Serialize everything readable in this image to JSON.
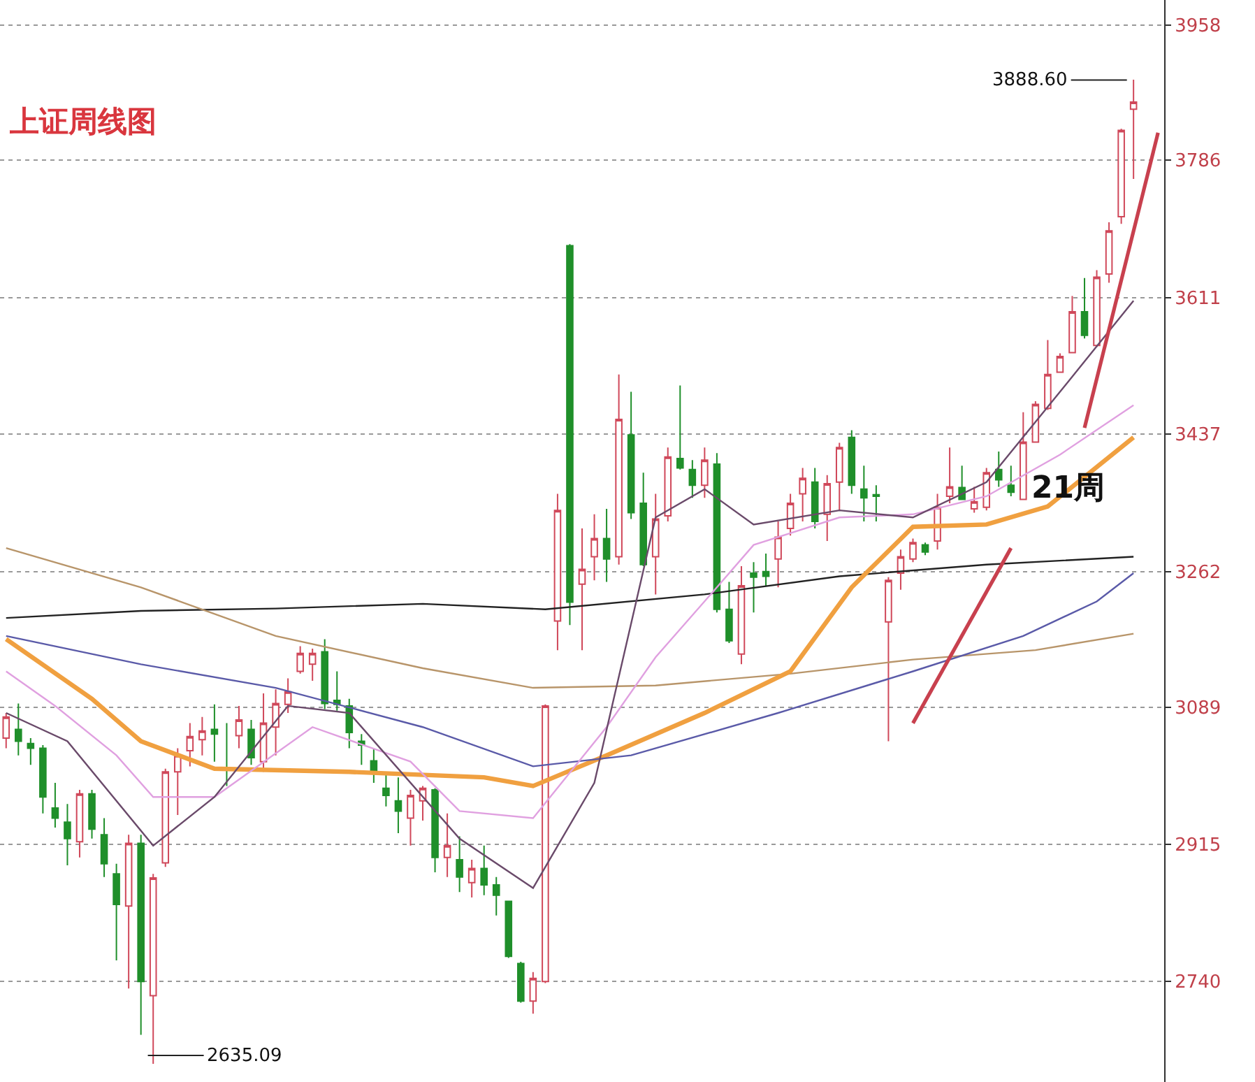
{
  "chart_data": {
    "type": "candlestick",
    "title": "上证周线图",
    "categories": [
      null,
      null,
      null,
      null,
      null,
      null,
      null,
      null,
      null,
      null,
      null,
      null,
      null,
      null,
      null,
      null,
      null,
      null,
      null,
      null,
      null,
      null,
      null,
      null,
      null,
      null,
      null,
      null,
      null,
      null,
      null,
      null,
      null,
      null,
      null,
      null,
      null,
      null,
      null,
      null,
      null,
      null,
      null,
      null,
      null,
      null,
      null,
      null,
      null,
      null,
      null,
      null,
      null,
      null,
      null,
      null,
      null,
      null,
      null,
      null,
      null,
      null,
      null,
      null,
      null,
      null,
      null,
      null,
      null,
      null,
      null,
      null,
      null,
      null,
      null,
      null,
      null,
      null,
      null,
      null,
      null,
      null,
      null,
      null,
      null,
      null,
      null,
      null,
      null,
      null,
      null,
      null,
      null,
      null,
      null
    ],
    "ohlc": [
      [
        3050,
        3082,
        3037,
        3077
      ],
      [
        3061,
        3094,
        3028,
        3046
      ],
      [
        3043,
        3050,
        3016,
        3037
      ],
      [
        3037,
        3041,
        2954,
        2975
      ],
      [
        2961,
        2993,
        2936,
        2948
      ],
      [
        2943,
        2966,
        2888,
        2922
      ],
      [
        2918,
        2984,
        2898,
        2979
      ],
      [
        2979,
        2984,
        2922,
        2934
      ],
      [
        2927,
        2948,
        2873,
        2890
      ],
      [
        2877,
        2890,
        2767,
        2838
      ],
      [
        2836,
        2927,
        2731,
        2916
      ],
      [
        2916,
        2927,
        2672,
        2740
      ],
      [
        2722,
        2877,
        2635.09,
        2872
      ],
      [
        2891,
        3011,
        2886,
        3007
      ],
      [
        3007,
        3037,
        2952,
        3028
      ],
      [
        3034,
        3069,
        3014,
        3052
      ],
      [
        3048,
        3077,
        3028,
        3059
      ],
      [
        3061,
        3093,
        3020,
        3055
      ],
      [
        3012,
        3069,
        2989,
        3009
      ],
      [
        3053,
        3091,
        3037,
        3073
      ],
      [
        3061,
        3073,
        3016,
        3025
      ],
      [
        3020,
        3107,
        3007,
        3069
      ],
      [
        3064,
        3112,
        3028,
        3094
      ],
      [
        3093,
        3126,
        3082,
        3109
      ],
      [
        3135,
        3167,
        3132,
        3158
      ],
      [
        3144,
        3164,
        3123,
        3158
      ],
      [
        3160,
        3176,
        3087,
        3094
      ],
      [
        3098,
        3135,
        3085,
        3093
      ],
      [
        3091,
        3100,
        3037,
        3057
      ],
      [
        3046,
        3055,
        3016,
        3041
      ],
      [
        3021,
        3036,
        2993,
        3007
      ],
      [
        2986,
        3005,
        2963,
        2977
      ],
      [
        2970,
        3000,
        2929,
        2957
      ],
      [
        2948,
        2984,
        2913,
        2977
      ],
      [
        2970,
        2989,
        2945,
        2986
      ],
      [
        2984,
        2986,
        2879,
        2898
      ],
      [
        2898,
        2954,
        2873,
        2913
      ],
      [
        2895,
        2925,
        2854,
        2873
      ],
      [
        2866,
        2895,
        2847,
        2884
      ],
      [
        2884,
        2913,
        2850,
        2863
      ],
      [
        2863,
        2873,
        2824,
        2850
      ],
      [
        2842,
        2843,
        2770,
        2772
      ],
      [
        2763,
        2765,
        2713,
        2715
      ],
      [
        2715,
        2752,
        2699,
        2744
      ],
      [
        2740,
        3093,
        2738,
        3091
      ],
      [
        3199,
        3361,
        3162,
        3340
      ],
      [
        3677,
        3679,
        3194,
        3223
      ],
      [
        3246,
        3317,
        3162,
        3265
      ],
      [
        3281,
        3335,
        3251,
        3304
      ],
      [
        3304,
        3342,
        3249,
        3278
      ],
      [
        3281,
        3513,
        3271,
        3456
      ],
      [
        3436,
        3491,
        3329,
        3337
      ],
      [
        3349,
        3388,
        3269,
        3271
      ],
      [
        3281,
        3361,
        3233,
        3329
      ],
      [
        3333,
        3420,
        3326,
        3408
      ],
      [
        3406,
        3499,
        3392,
        3394
      ],
      [
        3392,
        3404,
        3356,
        3372
      ],
      [
        3372,
        3420,
        3356,
        3404
      ],
      [
        3399,
        3413,
        3210,
        3214
      ],
      [
        3214,
        3249,
        3171,
        3174
      ],
      [
        3157,
        3269,
        3144,
        3244
      ],
      [
        3260,
        3274,
        3210,
        3255
      ],
      [
        3262,
        3285,
        3244,
        3256
      ],
      [
        3278,
        3326,
        3242,
        3306
      ],
      [
        3317,
        3361,
        3308,
        3349
      ],
      [
        3361,
        3394,
        3326,
        3381
      ],
      [
        3376,
        3394,
        3317,
        3326
      ],
      [
        3335,
        3385,
        3301,
        3374
      ],
      [
        3376,
        3426,
        3340,
        3420
      ],
      [
        3433,
        3442,
        3361,
        3372
      ],
      [
        3367,
        3397,
        3326,
        3356
      ],
      [
        3360,
        3372,
        3326,
        3358
      ],
      [
        3198,
        3255,
        3046,
        3251
      ],
      [
        3260,
        3290,
        3239,
        3281
      ],
      [
        3278,
        3304,
        3274,
        3299
      ],
      [
        3296,
        3299,
        3283,
        3287
      ],
      [
        3301,
        3361,
        3290,
        3344
      ],
      [
        3358,
        3420,
        3349,
        3370
      ],
      [
        3369,
        3397,
        3353,
        3354
      ],
      [
        3342,
        3370,
        3337,
        3351
      ],
      [
        3344,
        3394,
        3340,
        3388
      ],
      [
        3392,
        3415,
        3370,
        3379
      ],
      [
        3372,
        3397,
        3358,
        3363
      ],
      [
        3354,
        3465,
        3353,
        3427
      ],
      [
        3427,
        3479,
        3426,
        3475
      ],
      [
        3470,
        3557,
        3468,
        3513
      ],
      [
        3516,
        3540,
        3515,
        3536
      ],
      [
        3541,
        3613,
        3540,
        3593
      ],
      [
        3593,
        3636,
        3559,
        3563
      ],
      [
        3550,
        3646,
        3548,
        3637
      ],
      [
        3641,
        3707,
        3630,
        3696
      ],
      [
        3714,
        3826,
        3705,
        3824
      ],
      [
        3851,
        3888.6,
        3762,
        3860
      ],
      null,
      null
    ],
    "series": [
      {
        "type": "line",
        "color": "#222222",
        "values": [
          3203,
          null,
          null,
          null,
          null,
          null,
          null,
          null,
          null,
          null,
          null,
          3212,
          null,
          null,
          null,
          null,
          null,
          null,
          null,
          null,
          null,
          null,
          3215,
          null,
          null,
          null,
          null,
          null,
          null,
          null,
          null,
          null,
          null,
          null,
          3221,
          null,
          null,
          null,
          null,
          null,
          null,
          null,
          null,
          null,
          3214,
          null,
          null,
          null,
          null,
          null,
          null,
          null,
          null,
          null,
          null,
          null,
          null,
          3233,
          null,
          null,
          null,
          null,
          null,
          null,
          null,
          null,
          null,
          null,
          3256,
          null,
          null,
          null,
          null,
          null,
          null,
          null,
          null,
          null,
          null,
          null,
          3271,
          null,
          null,
          null,
          null,
          null,
          null,
          null,
          null,
          null,
          null,
          null,
          3281,
          null,
          null
        ]
      },
      {
        "type": "line",
        "color": "#b8956a",
        "values": [
          3292,
          null,
          null,
          null,
          null,
          null,
          null,
          null,
          null,
          null,
          null,
          3242,
          null,
          null,
          null,
          null,
          null,
          null,
          null,
          null,
          null,
          null,
          3180,
          null,
          null,
          null,
          null,
          null,
          null,
          null,
          null,
          null,
          null,
          null,
          3139,
          null,
          null,
          null,
          null,
          null,
          null,
          null,
          null,
          3114,
          null,
          null,
          null,
          null,
          null,
          null,
          null,
          null,
          null,
          3117,
          null,
          null,
          null,
          null,
          null,
          null,
          null,
          null,
          null,
          null,
          3132,
          null,
          null,
          null,
          null,
          null,
          null,
          null,
          null,
          null,
          3150,
          null,
          null,
          null,
          null,
          null,
          null,
          null,
          null,
          null,
          3162,
          null,
          null,
          null,
          null,
          null,
          null,
          null,
          3183,
          null,
          null
        ]
      },
      {
        "type": "line",
        "color": "#f0a040",
        "values": [
          3176,
          null,
          null,
          null,
          null,
          null,
          null,
          3100,
          null,
          null,
          null,
          3046,
          null,
          null,
          null,
          null,
          null,
          3011,
          null,
          null,
          null,
          null,
          null,
          null,
          null,
          null,
          null,
          null,
          3007,
          null,
          null,
          null,
          null,
          null,
          null,
          null,
          null,
          null,
          null,
          3000,
          null,
          null,
          null,
          2989,
          null,
          null,
          null,
          null,
          null,
          3028,
          null,
          null,
          null,
          null,
          null,
          null,
          null,
          3082,
          null,
          null,
          null,
          null,
          null,
          null,
          3135,
          null,
          null,
          null,
          null,
          3242,
          null,
          null,
          null,
          null,
          3319,
          null,
          null,
          null,
          null,
          null,
          3322,
          null,
          null,
          null,
          null,
          3345,
          null,
          null,
          null,
          null,
          null,
          null,
          3433,
          null,
          null
        ]
      },
      {
        "type": "line",
        "color": "#5a5aa8",
        "values": [
          3180,
          null,
          null,
          null,
          null,
          null,
          null,
          null,
          null,
          null,
          null,
          3144,
          null,
          null,
          null,
          null,
          null,
          null,
          null,
          null,
          null,
          null,
          3114,
          null,
          null,
          null,
          null,
          null,
          null,
          null,
          null,
          null,
          null,
          null,
          3064,
          null,
          null,
          null,
          null,
          null,
          null,
          null,
          null,
          3014,
          null,
          null,
          null,
          null,
          null,
          null,
          null,
          3028,
          null,
          null,
          null,
          null,
          null,
          null,
          null,
          null,
          null,
          null,
          null,
          3082,
          null,
          null,
          null,
          null,
          null,
          null,
          null,
          null,
          null,
          null,
          3135,
          null,
          null,
          null,
          null,
          null,
          null,
          null,
          null,
          3180,
          null,
          null,
          null,
          null,
          null,
          3224,
          null,
          null,
          3260,
          null,
          null
        ]
      },
      {
        "type": "line",
        "color": "#e0a0e0",
        "values": [
          3135,
          null,
          null,
          null,
          3091,
          null,
          null,
          null,
          null,
          3028,
          null,
          null,
          2975,
          null,
          null,
          null,
          null,
          2975,
          null,
          null,
          null,
          null,
          null,
          null,
          null,
          3064,
          null,
          null,
          null,
          null,
          null,
          null,
          null,
          3020,
          null,
          null,
          null,
          2957,
          null,
          null,
          null,
          null,
          null,
          2948,
          null,
          null,
          null,
          null,
          null,
          3064,
          null,
          null,
          null,
          3153,
          null,
          null,
          null,
          null,
          3242,
          null,
          null,
          3296,
          null,
          null,
          null,
          null,
          null,
          null,
          3331,
          null,
          null,
          null,
          null,
          null,
          3335,
          null,
          null,
          null,
          null,
          null,
          3358,
          null,
          null,
          null,
          null,
          null,
          3411,
          null,
          null,
          null,
          null,
          null,
          3474,
          null,
          null
        ]
      },
      {
        "type": "line",
        "color": "#6a4a6a",
        "values": [
          3082,
          null,
          null,
          null,
          null,
          3046,
          null,
          null,
          null,
          null,
          null,
          null,
          2913,
          null,
          null,
          null,
          null,
          2975,
          null,
          null,
          null,
          null,
          null,
          3091,
          null,
          null,
          null,
          null,
          3082,
          null,
          null,
          null,
          null,
          null,
          null,
          null,
          null,
          2922,
          null,
          null,
          null,
          null,
          null,
          2859,
          null,
          null,
          null,
          null,
          2993,
          null,
          null,
          null,
          null,
          3331,
          null,
          null,
          null,
          3367,
          null,
          null,
          null,
          3322,
          null,
          null,
          null,
          null,
          null,
          null,
          3340,
          null,
          null,
          null,
          null,
          null,
          3331,
          null,
          null,
          null,
          null,
          null,
          3376,
          null,
          null,
          null,
          null,
          null,
          3491,
          null,
          null,
          null,
          null,
          null,
          3607,
          null,
          null
        ]
      },
      {
        "type": "line",
        "color": "#c8404e",
        "values": [
          null,
          null,
          null,
          null,
          null,
          null,
          null,
          null,
          null,
          null,
          null,
          null,
          null,
          null,
          null,
          null,
          null,
          null,
          null,
          null,
          null,
          null,
          null,
          null,
          null,
          null,
          null,
          null,
          null,
          null,
          null,
          null,
          null,
          null,
          null,
          null,
          null,
          null,
          null,
          null,
          null,
          null,
          null,
          null,
          null,
          null,
          null,
          null,
          null,
          null,
          null,
          null,
          null,
          null,
          null,
          null,
          null,
          null,
          null,
          null,
          null,
          null,
          null,
          null,
          null,
          null,
          null,
          null,
          null,
          null,
          null,
          null,
          null,
          null,
          3069,
          null,
          null,
          null,
          null,
          null,
          null,
          null,
          3292,
          null,
          null,
          null,
          null,
          null,
          null,
          null,
          null,
          null,
          null,
          null,
          null
        ]
      },
      {
        "type": "line",
        "color": "#c8404e",
        "values": [
          null,
          null,
          null,
          null,
          null,
          null,
          null,
          null,
          null,
          null,
          null,
          null,
          null,
          null,
          null,
          null,
          null,
          null,
          null,
          null,
          null,
          null,
          null,
          null,
          null,
          null,
          null,
          null,
          null,
          null,
          null,
          null,
          null,
          null,
          null,
          null,
          null,
          null,
          null,
          null,
          null,
          null,
          null,
          null,
          null,
          null,
          null,
          null,
          null,
          null,
          null,
          null,
          null,
          null,
          null,
          null,
          null,
          null,
          null,
          null,
          null,
          null,
          null,
          null,
          null,
          null,
          null,
          null,
          null,
          null,
          null,
          null,
          null,
          null,
          null,
          null,
          null,
          null,
          null,
          null,
          null,
          null,
          null,
          null,
          null,
          null,
          null,
          null,
          3445,
          null,
          null,
          null,
          null,
          null,
          3821
        ]
      }
    ],
    "ylim": [
      2612,
      3990
    ],
    "yticks": [
      2740,
      2915,
      3089,
      3262,
      3437,
      3611,
      3786,
      3958
    ],
    "grid": "y",
    "tick_labels": "y",
    "annotations": [
      "3888.60",
      "2635.09",
      "21周"
    ]
  }
}
